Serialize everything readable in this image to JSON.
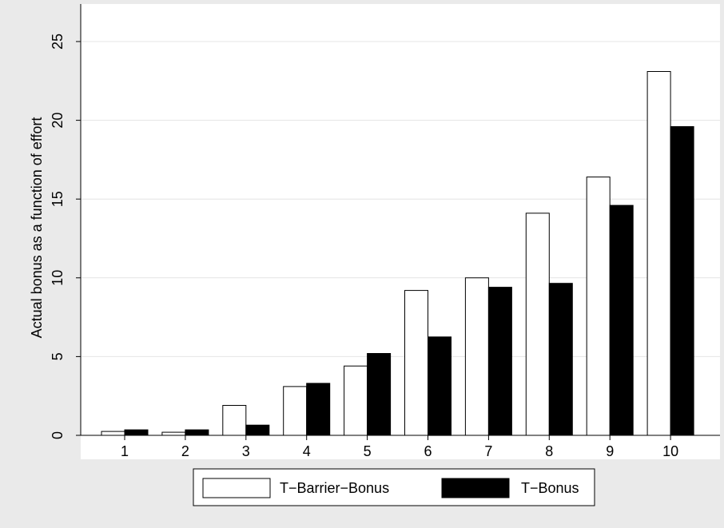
{
  "chart_data": {
    "type": "bar",
    "title": "",
    "xlabel": "",
    "ylabel": "Actual bonus as a function of effort",
    "categories": [
      "1",
      "2",
      "3",
      "4",
      "5",
      "6",
      "7",
      "8",
      "9",
      "10"
    ],
    "series": [
      {
        "name": "T−Barrier−Bonus",
        "color": "#ffffff",
        "values": [
          0.25,
          0.2,
          1.9,
          3.1,
          4.4,
          9.2,
          10.0,
          14.1,
          16.4,
          23.1
        ]
      },
      {
        "name": "T−Bonus",
        "color": "#000000",
        "values": [
          0.35,
          0.35,
          0.65,
          3.3,
          5.2,
          6.25,
          9.4,
          9.65,
          14.6,
          19.6
        ]
      }
    ],
    "ylim": [
      0,
      25
    ],
    "yticks": [
      "0",
      "5",
      "10",
      "15",
      "20",
      "25"
    ],
    "grid": true,
    "legend_position": "bottom",
    "colors": {
      "background": "#eaeaea",
      "plot_background": "#ffffff",
      "grid": "#e4e4e4"
    }
  }
}
